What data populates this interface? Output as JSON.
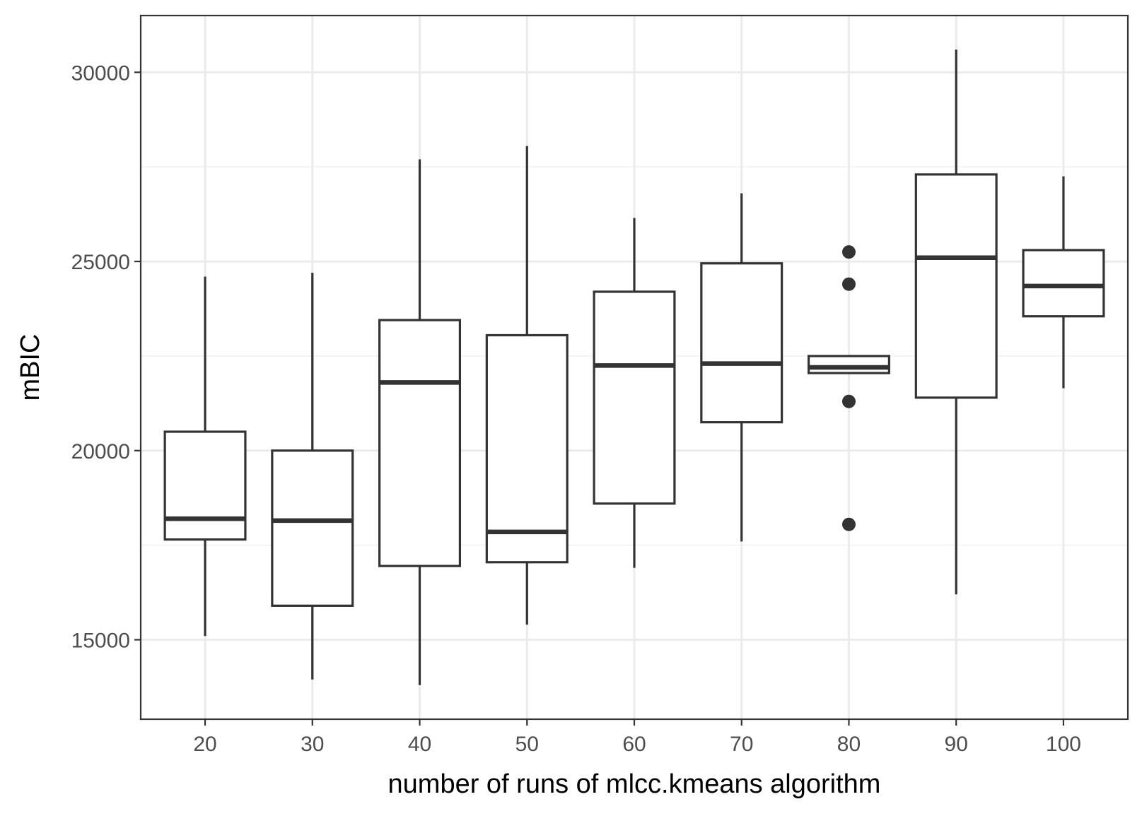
{
  "chart_data": {
    "type": "boxplot",
    "title": "",
    "xlabel": "number of runs of mlcc.kmeans algorithm",
    "ylabel": "mBIC",
    "categories": [
      "20",
      "30",
      "40",
      "50",
      "60",
      "70",
      "80",
      "90",
      "100"
    ],
    "ylim": [
      12900,
      31500
    ],
    "yticks": [
      15000,
      20000,
      25000,
      30000
    ],
    "ytick_labels": [
      "15000",
      "20000",
      "25000",
      "30000"
    ],
    "grid": true,
    "theme": "bw",
    "boxes": [
      {
        "x": "20",
        "whisker_low": 15100,
        "q1": 17650,
        "median": 18200,
        "q3": 20500,
        "whisker_high": 24600,
        "outliers": []
      },
      {
        "x": "30",
        "whisker_low": 13950,
        "q1": 15900,
        "median": 18150,
        "q3": 20000,
        "whisker_high": 24700,
        "outliers": []
      },
      {
        "x": "40",
        "whisker_low": 13800,
        "q1": 16950,
        "median": 21800,
        "q3": 23450,
        "whisker_high": 27700,
        "outliers": []
      },
      {
        "x": "50",
        "whisker_low": 15400,
        "q1": 17050,
        "median": 17850,
        "q3": 23050,
        "whisker_high": 28050,
        "outliers": []
      },
      {
        "x": "60",
        "whisker_low": 16900,
        "q1": 18600,
        "median": 22250,
        "q3": 24200,
        "whisker_high": 26150,
        "outliers": []
      },
      {
        "x": "70",
        "whisker_low": 17600,
        "q1": 20750,
        "median": 22300,
        "q3": 24950,
        "whisker_high": 26800,
        "outliers": []
      },
      {
        "x": "80",
        "whisker_low": 22050,
        "q1": 22050,
        "median": 22200,
        "q3": 22500,
        "whisker_high": 22500,
        "outliers": [
          18050,
          21300,
          24400,
          25250
        ]
      },
      {
        "x": "90",
        "whisker_low": 16200,
        "q1": 21400,
        "median": 25100,
        "q3": 27300,
        "whisker_high": 30600,
        "outliers": []
      },
      {
        "x": "100",
        "whisker_low": 21650,
        "q1": 23550,
        "median": 24350,
        "q3": 25300,
        "whisker_high": 27250,
        "outliers": []
      }
    ],
    "colors": {
      "box_stroke": "#333333",
      "box_fill": "#ffffff",
      "grid_major": "#ebebeb",
      "grid_minor": "#f2f2f2",
      "panel_border": "#333333",
      "tick_text": "#4d4d4d",
      "title_text": "#000000"
    }
  }
}
